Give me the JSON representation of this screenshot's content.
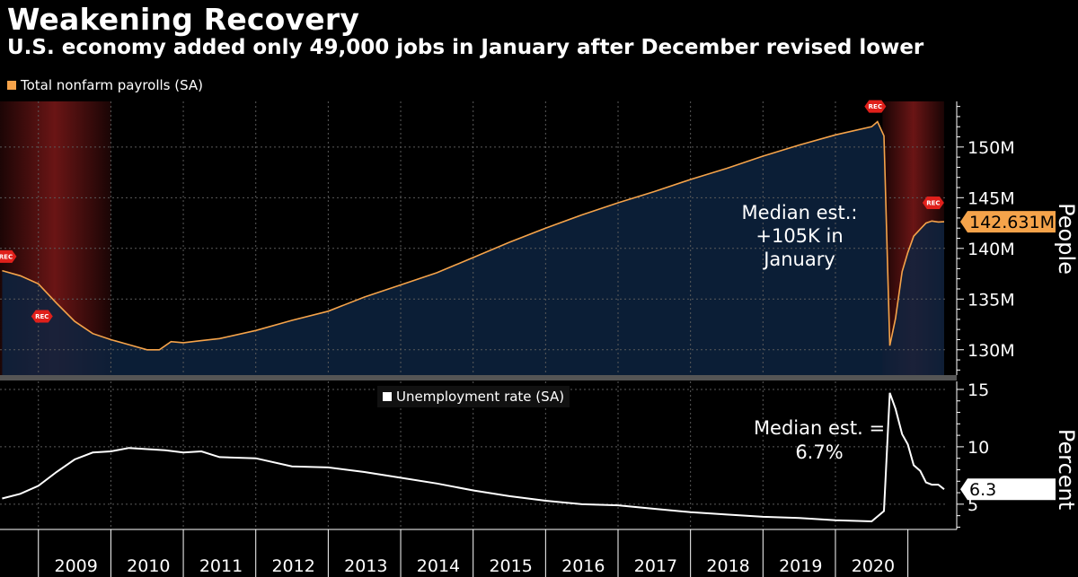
{
  "header": {
    "title": "Weakening Recovery",
    "subtitle": "U.S. economy added only 49,000 jobs in January after December revised lower"
  },
  "colors": {
    "background": "#000000",
    "payroll_line": "#f5a34a",
    "payroll_fill": "#0d2340",
    "unemployment_line": "#ffffff",
    "recession_band": "#6a1515",
    "rec_marker": "#e0201b",
    "grid": "#5a5a5a"
  },
  "chart_data": [
    {
      "type": "area",
      "legend": "Total nonfarm payrolls (SA)",
      "ylabel": "People",
      "ylim": [
        127.5,
        154.5
      ],
      "yticks": [
        130,
        135,
        140,
        145,
        150
      ],
      "ytick_labels": [
        "130M",
        "135M",
        "140M",
        "145M",
        "150M"
      ],
      "last_value_label": "142.631M",
      "annotation": [
        "Median est.:",
        "+105K in",
        "January"
      ],
      "recession_marker_label": "REC",
      "recessions": [
        [
          2007.95,
          2009.5
        ],
        [
          2020.15,
          2021.0
        ]
      ],
      "series": [
        {
          "x": [
            2008.0,
            2008.25,
            2008.5,
            2008.75,
            2009.0,
            2009.25,
            2009.5,
            2009.75,
            2010.0,
            2010.17,
            2010.33,
            2010.5,
            2010.75,
            2011.0,
            2011.5,
            2012.0,
            2012.5,
            2013.0,
            2013.5,
            2014.0,
            2014.5,
            2015.0,
            2015.5,
            2016.0,
            2016.5,
            2017.0,
            2017.5,
            2018.0,
            2018.5,
            2019.0,
            2019.5,
            2020.0,
            2020.08,
            2020.17,
            2020.25,
            2020.33,
            2020.42,
            2020.5,
            2020.58,
            2020.67,
            2020.75,
            2020.83,
            2020.92,
            2021.0
          ],
          "y": [
            137.8,
            137.3,
            136.5,
            134.6,
            132.8,
            131.6,
            131.0,
            130.5,
            130.0,
            130.0,
            130.8,
            130.7,
            130.9,
            131.1,
            131.9,
            132.9,
            133.8,
            135.2,
            136.4,
            137.6,
            139.1,
            140.6,
            142.0,
            143.3,
            144.5,
            145.6,
            146.8,
            147.9,
            149.1,
            150.2,
            151.2,
            152.0,
            152.5,
            151.1,
            130.4,
            133.1,
            137.7,
            139.6,
            141.2,
            141.9,
            142.5,
            142.7,
            142.6,
            142.631
          ]
        }
      ]
    },
    {
      "type": "line",
      "legend": "Unemployment rate (SA)",
      "ylabel": "Percent",
      "ylim": [
        2.8,
        15.7
      ],
      "yticks": [
        5,
        10,
        15
      ],
      "ytick_labels": [
        "5",
        "10",
        "15"
      ],
      "last_value_label": "6.3",
      "annotation": [
        "Median est. =",
        "6.7%"
      ],
      "x_ticks": [
        "2009",
        "2010",
        "2011",
        "2012",
        "2013",
        "2014",
        "2015",
        "2016",
        "2017",
        "2018",
        "2019",
        "2020"
      ],
      "series": [
        {
          "x": [
            2008.0,
            2008.25,
            2008.5,
            2008.75,
            2009.0,
            2009.25,
            2009.5,
            2009.75,
            2010.0,
            2010.25,
            2010.5,
            2010.75,
            2011.0,
            2011.5,
            2012.0,
            2012.5,
            2013.0,
            2013.5,
            2014.0,
            2014.5,
            2015.0,
            2015.5,
            2016.0,
            2016.5,
            2017.0,
            2017.5,
            2018.0,
            2018.5,
            2019.0,
            2019.5,
            2020.0,
            2020.17,
            2020.25,
            2020.33,
            2020.42,
            2020.5,
            2020.58,
            2020.67,
            2020.75,
            2020.83,
            2020.92,
            2021.0
          ],
          "y": [
            5.5,
            5.9,
            6.6,
            7.8,
            8.9,
            9.5,
            9.6,
            9.9,
            9.8,
            9.7,
            9.5,
            9.6,
            9.1,
            9.0,
            8.3,
            8.2,
            7.8,
            7.3,
            6.8,
            6.2,
            5.7,
            5.3,
            5.0,
            4.9,
            4.6,
            4.3,
            4.1,
            3.9,
            3.8,
            3.6,
            3.5,
            4.4,
            14.7,
            13.3,
            11.1,
            10.2,
            8.4,
            7.9,
            6.9,
            6.7,
            6.7,
            6.3
          ]
        }
      ]
    }
  ]
}
